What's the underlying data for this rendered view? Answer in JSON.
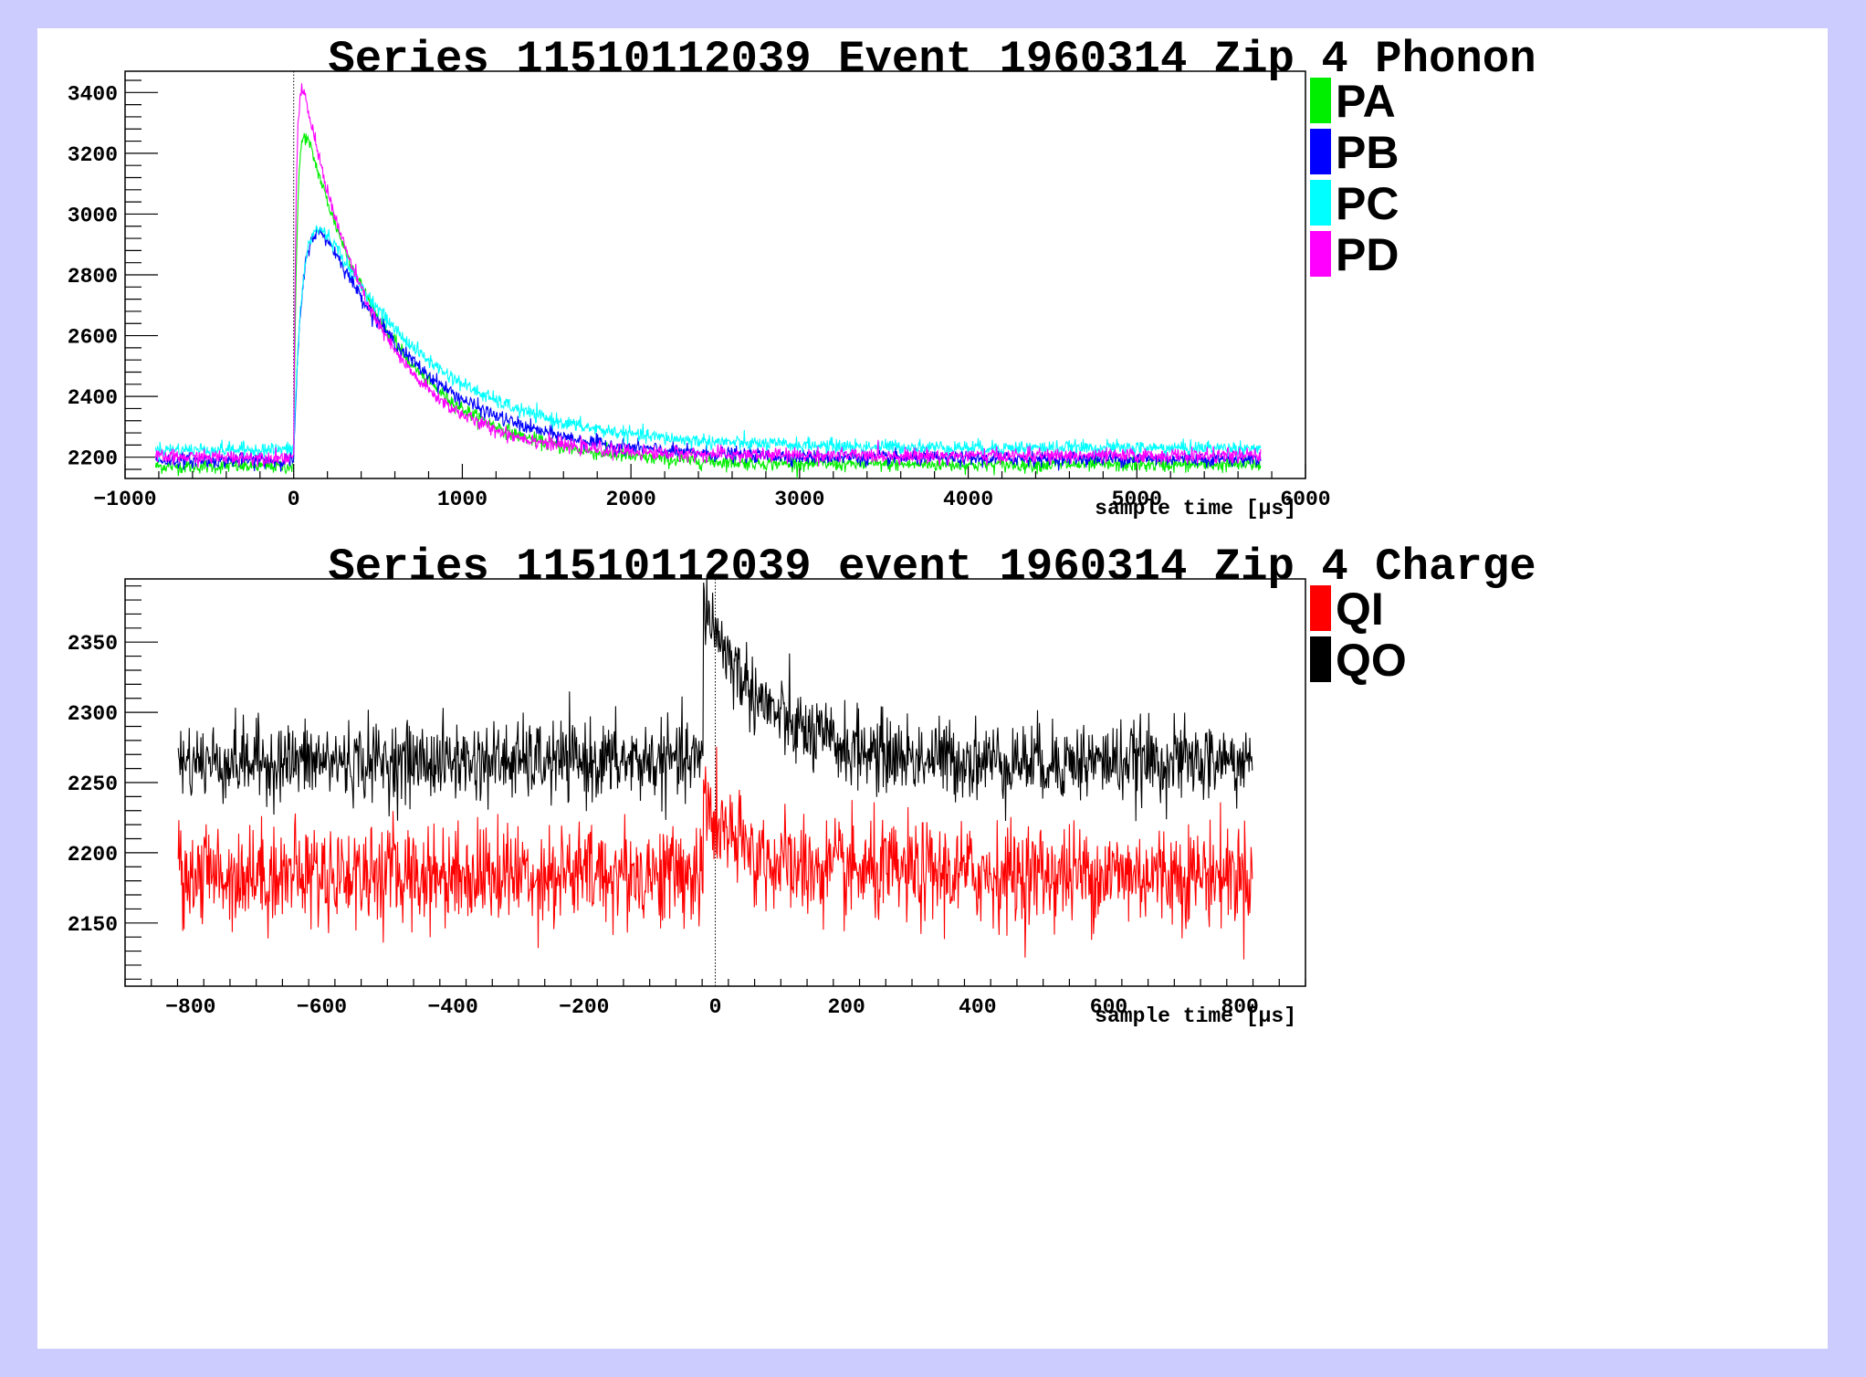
{
  "chart_data": [
    {
      "type": "line",
      "title": "Series 11510112039 Event 1960314 Zip 4 Phonon",
      "xlabel": "sample time [µs]",
      "ylabel": "",
      "xlim": [
        -1000,
        6000
      ],
      "ylim": [
        2130,
        3470
      ],
      "x_ticks": [
        -1000,
        0,
        1000,
        2000,
        3000,
        4000,
        5000,
        6000
      ],
      "y_ticks": [
        2200,
        2400,
        2600,
        2800,
        3000,
        3200,
        3400
      ],
      "x_range_data": [
        -819,
        5734
      ],
      "trigger_line_x": 0,
      "legend_position": "right",
      "series": [
        {
          "name": "PA",
          "color": "#00ee00",
          "baseline": 2170,
          "peak": 3255,
          "peak_x": 70,
          "rise_time": 20,
          "decay_time": 520,
          "settle": 2175,
          "noise": 12
        },
        {
          "name": "PB",
          "color": "#0000ff",
          "baseline": 2190,
          "peak": 2940,
          "peak_x": 200,
          "rise_time": 60,
          "decay_time": 600,
          "settle": 2195,
          "noise": 12
        },
        {
          "name": "PC",
          "color": "#00ffff",
          "baseline": 2225,
          "peak": 2950,
          "peak_x": 200,
          "rise_time": 60,
          "decay_time": 650,
          "settle": 2230,
          "noise": 12
        },
        {
          "name": "PD",
          "color": "#ff00ff",
          "baseline": 2200,
          "peak": 3400,
          "peak_x": 55,
          "rise_time": 15,
          "decay_time": 430,
          "settle": 2205,
          "noise": 12
        }
      ]
    },
    {
      "type": "line",
      "title": "Series 11510112039 event 1960314 Zip 4 Charge",
      "xlabel": "sample time [µs]",
      "ylabel": "",
      "xlim": [
        -900,
        900
      ],
      "ylim": [
        2105,
        2395
      ],
      "x_ticks": [
        -800,
        -600,
        -400,
        -200,
        0,
        200,
        400,
        600,
        800
      ],
      "y_ticks": [
        2150,
        2200,
        2250,
        2300,
        2350
      ],
      "x_range_data": [
        -819,
        819
      ],
      "trigger_line_x": 0,
      "legend_position": "right",
      "series": [
        {
          "name": "QI",
          "color": "#ff0000",
          "baseline": 2185,
          "spike": 2235,
          "spike_x": -18,
          "decay_time": 60,
          "noise": 18
        },
        {
          "name": "QO",
          "color": "#000000",
          "baseline": 2265,
          "spike": 2380,
          "spike_x": -18,
          "decay_time": 90,
          "noise": 14
        }
      ]
    }
  ]
}
